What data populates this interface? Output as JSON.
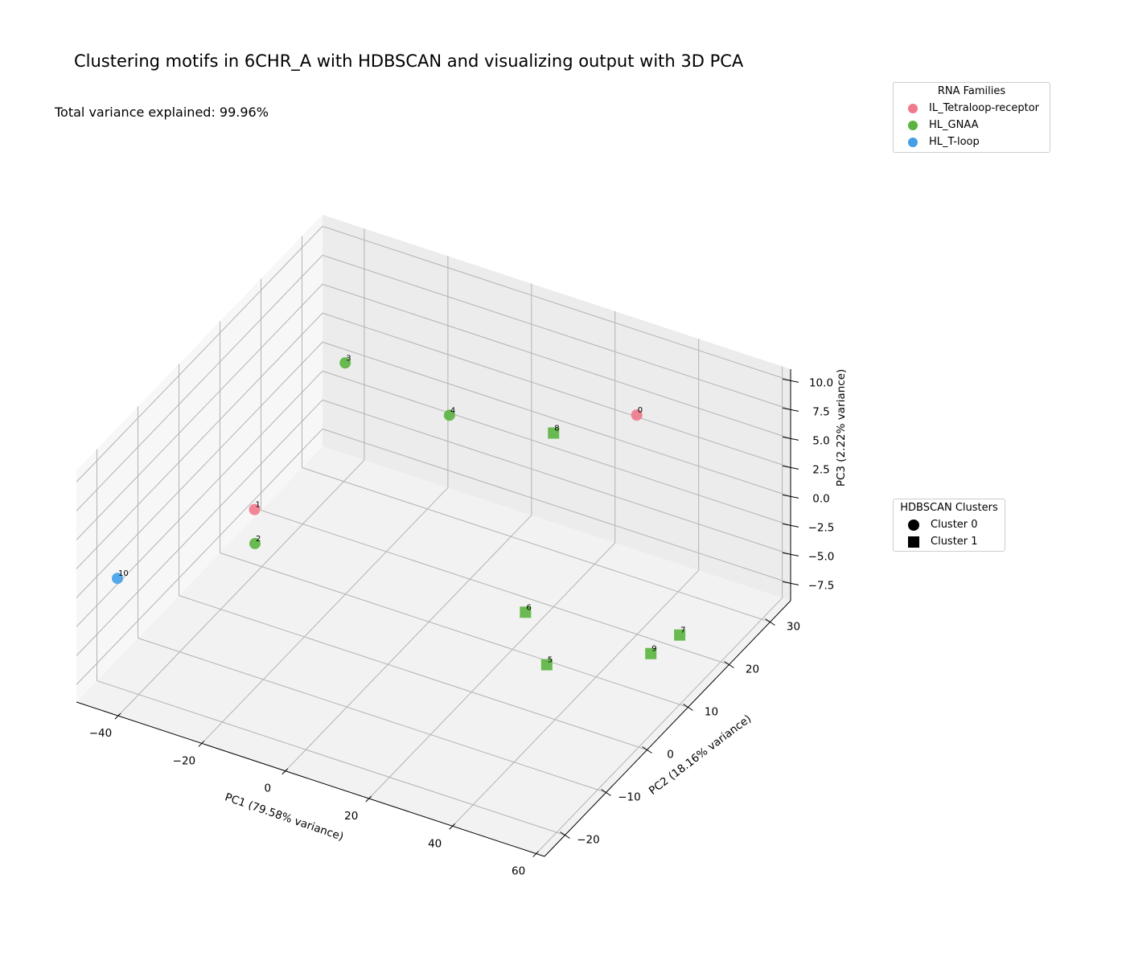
{
  "chart_data": {
    "type": "scatter",
    "title": "Clustering motifs in 6CHR_A with HDBSCAN and visualizing output with 3D PCA",
    "subtitle": "Total variance explained: 99.96%",
    "xlabel": "PC1 (79.58% variance)",
    "ylabel": "PC2 (18.16% variance)",
    "zlabel": "PC3 (2.22% variance)",
    "xlim": [
      -50,
      62
    ],
    "ylim": [
      -25,
      35
    ],
    "zlim": [
      -9,
      11
    ],
    "xticks": [
      -40,
      -20,
      0,
      20,
      40,
      60
    ],
    "yticks": [
      -20,
      -10,
      0,
      10,
      20,
      30
    ],
    "zticks": [
      -7.5,
      -5.0,
      -2.5,
      0.0,
      2.5,
      5.0,
      7.5,
      10.0
    ],
    "xtick_labels": [
      "−40",
      "−20",
      "0",
      "20",
      "40",
      "60"
    ],
    "ytick_labels": [
      "−20",
      "−10",
      "0",
      "10",
      "20",
      "30"
    ],
    "ztick_labels": [
      "−7.5",
      "−5.0",
      "−2.5",
      "0.0",
      "2.5",
      "5.0",
      "7.5",
      "10.0"
    ],
    "grid": true,
    "families": [
      {
        "name": "IL_Tetraloop-receptor",
        "color": "#f0798c"
      },
      {
        "name": "HL_GNAA",
        "color": "#5ab43f"
      },
      {
        "name": "HL_T-loop",
        "color": "#43a0e8"
      }
    ],
    "clusters": [
      {
        "name": "Cluster 0",
        "marker": "circle"
      },
      {
        "name": "Cluster 1",
        "marker": "square"
      }
    ],
    "legend_families_title": "RNA Families",
    "legend_clusters_title": "HDBSCAN Clusters",
    "points": [
      {
        "label": "0",
        "family": 0,
        "cluster": 0,
        "x": 35,
        "y": 25,
        "z": 7.5
      },
      {
        "label": "1",
        "family": 0,
        "cluster": 0,
        "x": -27,
        "y": -5,
        "z": 3
      },
      {
        "label": "2",
        "family": 1,
        "cluster": 0,
        "x": -22,
        "y": -10,
        "z": 2.5
      },
      {
        "label": "3",
        "family": 1,
        "cluster": 0,
        "x": -22,
        "y": 12,
        "z": 10
      },
      {
        "label": "4",
        "family": 1,
        "cluster": 0,
        "x": 0,
        "y": 15,
        "z": 7
      },
      {
        "label": "5",
        "family": 1,
        "cluster": 1,
        "x": 38,
        "y": 0,
        "z": -4.5
      },
      {
        "label": "6",
        "family": 1,
        "cluster": 1,
        "x": 28,
        "y": 5,
        "z": -3
      },
      {
        "label": "7",
        "family": 1,
        "cluster": 1,
        "x": 60,
        "y": 10,
        "z": -3
      },
      {
        "label": "8",
        "family": 1,
        "cluster": 1,
        "x": 20,
        "y": 20,
        "z": 6
      },
      {
        "label": "9",
        "family": 1,
        "cluster": 1,
        "x": 58,
        "y": 5,
        "z": -3
      },
      {
        "label": "10",
        "family": 2,
        "cluster": 0,
        "x": -50,
        "y": -15,
        "z": -2
      }
    ]
  }
}
